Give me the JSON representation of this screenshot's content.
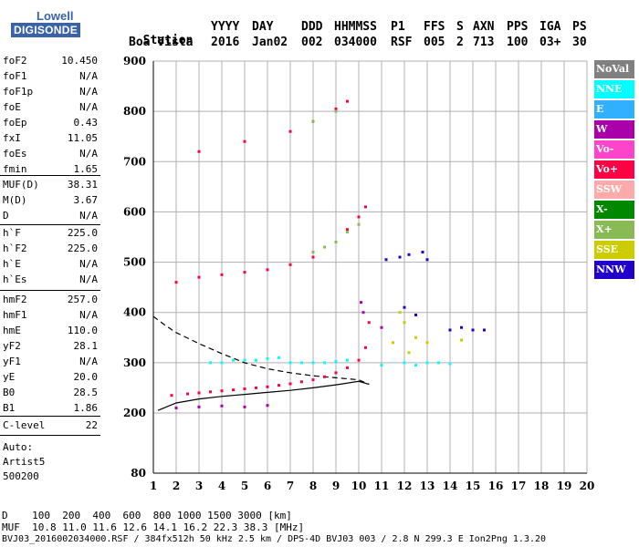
{
  "logo": {
    "line1": "Lowell",
    "line2": "DIGISONDE"
  },
  "header": {
    "row1": [
      "Station",
      "YYYY",
      "DAY",
      "DDD",
      "HHMMSS",
      "P1",
      "FFS",
      "S",
      "AXN",
      "PPS",
      "IGA",
      "PS"
    ],
    "row2": [
      "Boa Vista",
      "2016",
      "Jan02",
      "002",
      "034000",
      "RSF",
      "005",
      "2",
      "713",
      "100",
      "03+",
      "30"
    ]
  },
  "params_a": [
    {
      "label": "foF2",
      "value": "10.450"
    },
    {
      "label": "foF1",
      "value": "N/A"
    },
    {
      "label": "foF1p",
      "value": "N/A"
    },
    {
      "label": "foE",
      "value": "N/A"
    },
    {
      "label": "foEp",
      "value": "0.43"
    },
    {
      "label": "fxI",
      "value": "11.05"
    },
    {
      "label": "foEs",
      "value": "N/A"
    },
    {
      "label": "fmin",
      "value": "1.65"
    }
  ],
  "params_b": [
    {
      "label": "MUF(D)",
      "value": "38.31"
    },
    {
      "label": "M(D)",
      "value": "3.67"
    },
    {
      "label": "D",
      "value": "N/A"
    }
  ],
  "params_c": [
    {
      "label": "h`F",
      "value": "225.0"
    },
    {
      "label": "h`F2",
      "value": "225.0"
    },
    {
      "label": "h`E",
      "value": "N/A"
    },
    {
      "label": "h`Es",
      "value": "N/A"
    }
  ],
  "params_d": [
    {
      "label": "hmF2",
      "value": "257.0"
    },
    {
      "label": "hmF1",
      "value": "N/A"
    },
    {
      "label": "hmE",
      "value": "110.0"
    },
    {
      "label": "yF2",
      "value": "28.1"
    },
    {
      "label": "yF1",
      "value": "N/A"
    },
    {
      "label": "yE",
      "value": "20.0"
    },
    {
      "label": "B0",
      "value": "28.5"
    },
    {
      "label": "B1",
      "value": "1.86"
    }
  ],
  "params_e": [
    {
      "label": "C-level",
      "value": "22"
    }
  ],
  "autoscale": {
    "line1": "Auto:",
    "line2": "Artist5",
    "line3": "500200"
  },
  "legend": [
    {
      "label": "NoVal",
      "color": "#808080"
    },
    {
      "label": "NNE",
      "color": "#00ffff"
    },
    {
      "label": "E",
      "color": "#30b0ff"
    },
    {
      "label": "W",
      "color": "#aa00aa"
    },
    {
      "label": "Vo-",
      "color": "#ff44cc"
    },
    {
      "label": "Vo+",
      "color": "#ff0044"
    },
    {
      "label": "SSW",
      "color": "#ffaaaa"
    },
    {
      "label": "X-",
      "color": "#008800"
    },
    {
      "label": "X+",
      "color": "#88bb55"
    },
    {
      "label": "SSE",
      "color": "#cccc00"
    },
    {
      "label": "NNW",
      "color": "#2200cc"
    }
  ],
  "footer": {
    "line1": "D    100  200  400  600  800 1000 1500 3000 [km]",
    "line2": "MUF  10.8 11.0 11.6 12.6 14.1 16.2 22.3 38.3 [MHz]",
    "line3": "BVJ03_2016002034000.RSF / 384fx512h 50 kHz 2.5 km / DPS-4D BVJ03 003 / 2.8 N 299.3 E Ion2Png 1.3.20"
  },
  "chart_data": {
    "type": "scatter",
    "title": "",
    "xlabel": "",
    "ylabel": "",
    "xlim": [
      1,
      20
    ],
    "ylim": [
      80,
      900
    ],
    "x_ticks": [
      1,
      2,
      3,
      4,
      5,
      6,
      7,
      8,
      9,
      10,
      11,
      12,
      13,
      14,
      15,
      16,
      17,
      18,
      19,
      20
    ],
    "y_ticks": [
      80,
      200,
      300,
      400,
      500,
      600,
      700,
      800,
      900
    ],
    "grid": true,
    "series": [
      {
        "name": "Vo+",
        "color": "#ff0044",
        "points": [
          [
            1.8,
            235
          ],
          [
            2.5,
            238
          ],
          [
            3.0,
            240
          ],
          [
            3.5,
            242
          ],
          [
            4.0,
            244
          ],
          [
            4.5,
            246
          ],
          [
            5.0,
            248
          ],
          [
            5.5,
            250
          ],
          [
            6.0,
            252
          ],
          [
            6.5,
            255
          ],
          [
            7.0,
            258
          ],
          [
            7.5,
            262
          ],
          [
            8.0,
            266
          ],
          [
            8.5,
            272
          ],
          [
            9.0,
            280
          ],
          [
            9.5,
            290
          ],
          [
            10.0,
            305
          ],
          [
            10.3,
            330
          ],
          [
            10.45,
            380
          ],
          [
            2.0,
            460
          ],
          [
            3.0,
            470
          ],
          [
            4.0,
            475
          ],
          [
            5.0,
            480
          ],
          [
            6.0,
            485
          ],
          [
            7.0,
            495
          ],
          [
            8.0,
            510
          ],
          [
            9.0,
            540
          ],
          [
            9.5,
            565
          ],
          [
            10.0,
            590
          ],
          [
            10.3,
            610
          ],
          [
            3.0,
            720
          ],
          [
            5.0,
            740
          ],
          [
            7.0,
            760
          ],
          [
            8.0,
            780
          ],
          [
            9.0,
            805
          ],
          [
            9.5,
            820
          ]
        ]
      },
      {
        "name": "NNE",
        "color": "#00ffff",
        "points": [
          [
            3.5,
            300
          ],
          [
            4.0,
            300
          ],
          [
            4.5,
            305
          ],
          [
            5.0,
            305
          ],
          [
            5.5,
            305
          ],
          [
            6.0,
            308
          ],
          [
            6.5,
            310
          ],
          [
            7.0,
            300
          ],
          [
            7.5,
            300
          ],
          [
            8.0,
            300
          ],
          [
            8.5,
            300
          ],
          [
            9.0,
            302
          ],
          [
            9.5,
            305
          ],
          [
            11.0,
            295
          ],
          [
            12.0,
            300
          ],
          [
            12.5,
            295
          ],
          [
            13.0,
            300
          ],
          [
            13.5,
            300
          ],
          [
            14.0,
            298
          ]
        ]
      },
      {
        "name": "NNW",
        "color": "#2200cc",
        "points": [
          [
            11.2,
            505
          ],
          [
            11.8,
            510
          ],
          [
            12.2,
            515
          ],
          [
            12.8,
            520
          ],
          [
            13.0,
            505
          ],
          [
            14.0,
            365
          ],
          [
            14.5,
            370
          ],
          [
            15.0,
            365
          ],
          [
            15.5,
            365
          ],
          [
            12.0,
            410
          ],
          [
            12.5,
            395
          ]
        ]
      },
      {
        "name": "SSE",
        "color": "#cccc00",
        "points": [
          [
            11.5,
            340
          ],
          [
            12.0,
            380
          ],
          [
            12.5,
            350
          ],
          [
            13.0,
            340
          ],
          [
            14.5,
            345
          ],
          [
            11.8,
            400
          ],
          [
            12.2,
            320
          ]
        ]
      },
      {
        "name": "X+",
        "color": "#88bb55",
        "points": [
          [
            8.0,
            520
          ],
          [
            8.5,
            530
          ],
          [
            9.0,
            540
          ],
          [
            9.5,
            560
          ],
          [
            10.0,
            575
          ],
          [
            8.0,
            780
          ],
          [
            9.0,
            800
          ]
        ]
      },
      {
        "name": "W",
        "color": "#aa00aa",
        "points": [
          [
            2.0,
            210
          ],
          [
            3.0,
            212
          ],
          [
            4.0,
            214
          ],
          [
            5.0,
            212
          ],
          [
            6.0,
            215
          ],
          [
            10.1,
            420
          ],
          [
            10.2,
            400
          ],
          [
            11.0,
            370
          ]
        ]
      }
    ],
    "curves": [
      {
        "name": "profile",
        "style": "solid",
        "points": [
          [
            1.2,
            205
          ],
          [
            2.0,
            220
          ],
          [
            3.0,
            228
          ],
          [
            4.0,
            233
          ],
          [
            5.0,
            237
          ],
          [
            6.0,
            241
          ],
          [
            7.0,
            245
          ],
          [
            8.0,
            250
          ],
          [
            9.0,
            256
          ],
          [
            10.0,
            263
          ],
          [
            10.45,
            257
          ]
        ]
      },
      {
        "name": "profile-dashed",
        "style": "dashed",
        "points": [
          [
            1.0,
            392
          ],
          [
            1.5,
            375
          ],
          [
            2.0,
            360
          ],
          [
            3.0,
            338
          ],
          [
            4.0,
            318
          ],
          [
            5.0,
            300
          ],
          [
            6.0,
            288
          ],
          [
            7.0,
            280
          ],
          [
            8.0,
            274
          ],
          [
            9.0,
            270
          ],
          [
            10.0,
            266
          ],
          [
            10.45,
            257
          ]
        ]
      }
    ]
  }
}
